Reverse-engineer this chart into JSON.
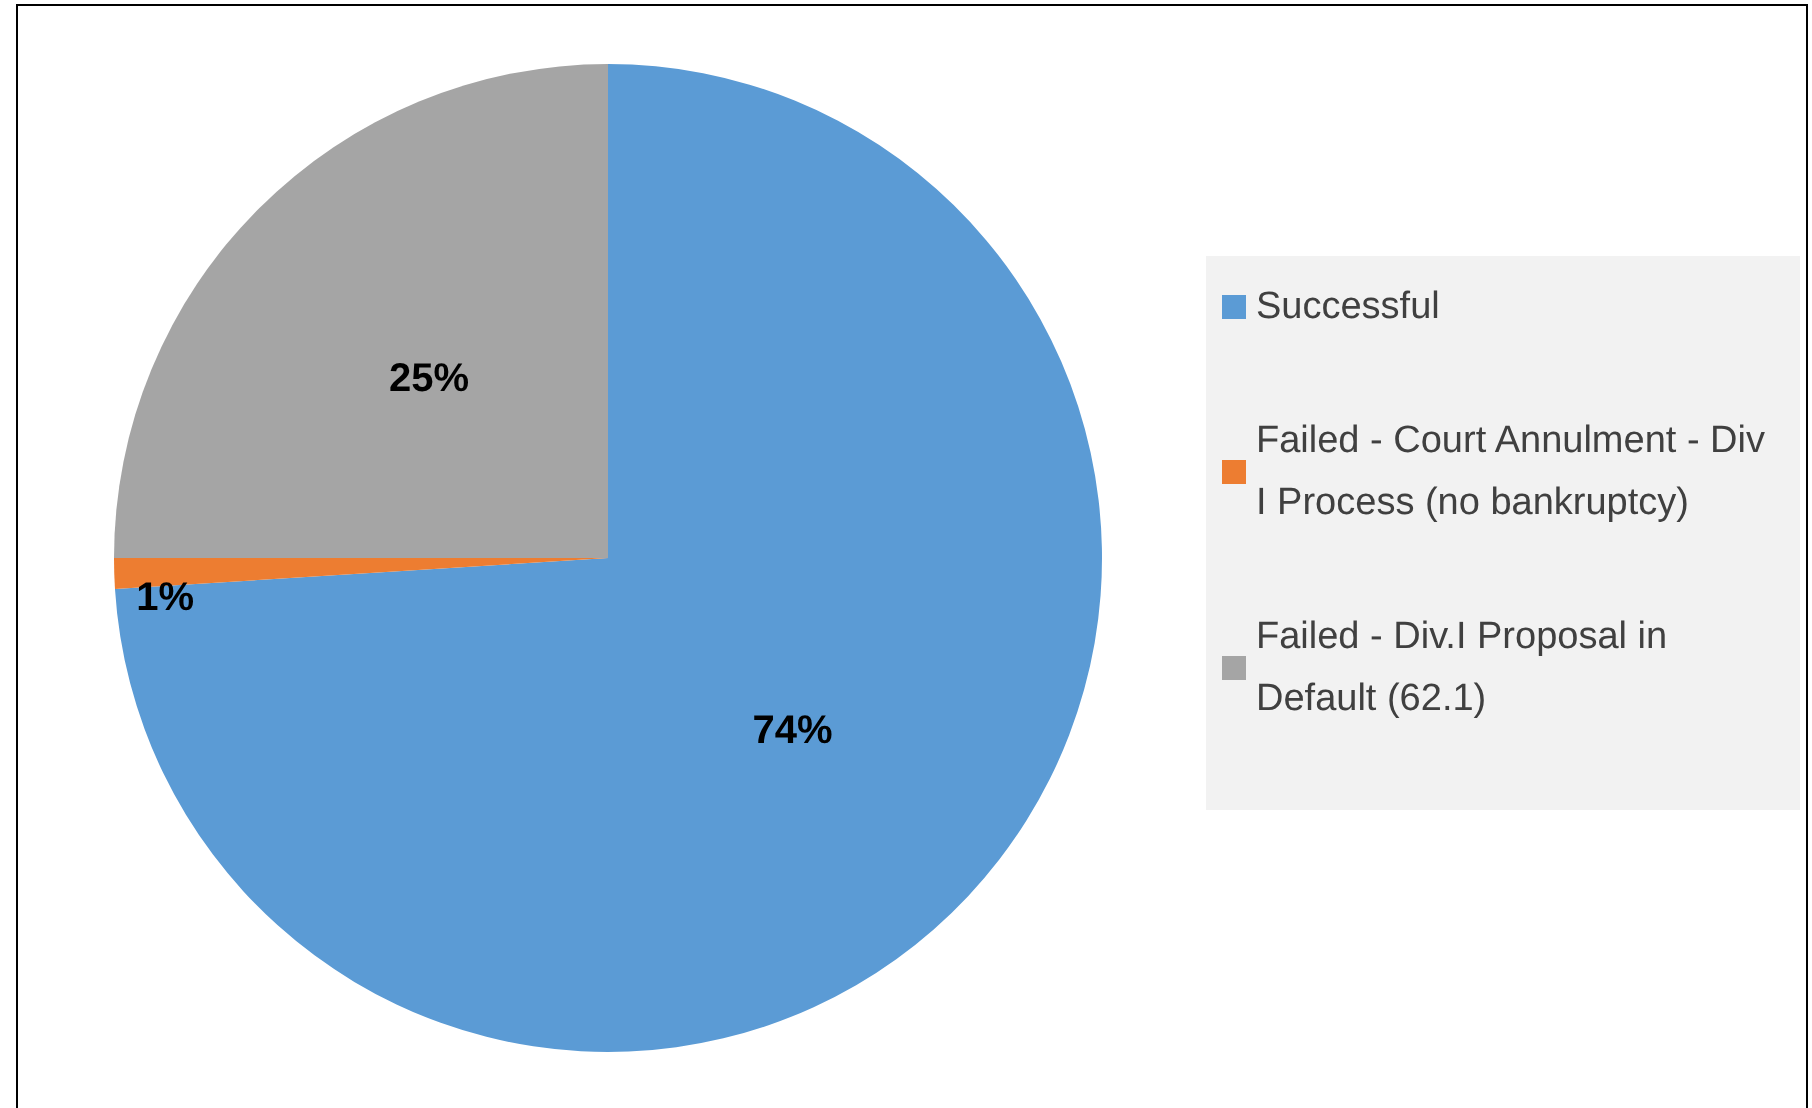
{
  "chart_data": {
    "type": "pie",
    "categories": [
      "Successful",
      "Failed - Court Annulment - Div I Process (no bankruptcy)",
      "Failed - Div.I Proposal in Default (62.1)"
    ],
    "values": [
      74,
      1,
      25
    ],
    "colors": [
      "#5b9bd5",
      "#ed7d31",
      "#a5a5a5"
    ],
    "value_labels": [
      "74%",
      "1%",
      "25%"
    ],
    "legend": "right"
  }
}
